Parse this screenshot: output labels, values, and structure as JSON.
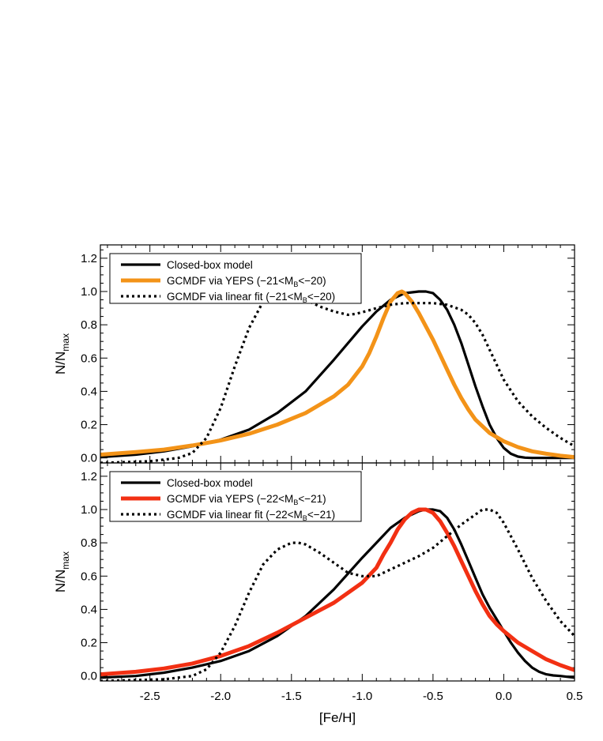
{
  "chart_data": [
    {
      "type": "line",
      "panel": "top",
      "xlabel": "",
      "ylabel_main": "N/N",
      "ylabel_sub": "max",
      "xlim": [
        -2.85,
        0.5
      ],
      "ylim": [
        -0.03,
        1.28
      ],
      "yticks": [
        "0.0",
        "0.2",
        "0.4",
        "0.6",
        "0.8",
        "1.0",
        "1.2"
      ],
      "legend_position": "top-left",
      "series": [
        {
          "name": "Closed-box model",
          "color": "#000000",
          "style": "solid",
          "x": [
            -2.85,
            -2.6,
            -2.4,
            -2.2,
            -2.0,
            -1.8,
            -1.6,
            -1.4,
            -1.2,
            -1.0,
            -0.9,
            -0.8,
            -0.7,
            -0.6,
            -0.55,
            -0.5,
            -0.45,
            -0.4,
            -0.35,
            -0.3,
            -0.25,
            -0.2,
            -0.15,
            -0.1,
            -0.05,
            0.0,
            0.05,
            0.1,
            0.15,
            0.2,
            0.3,
            0.4,
            0.5
          ],
          "y": [
            0.005,
            0.02,
            0.04,
            0.07,
            0.11,
            0.17,
            0.27,
            0.4,
            0.59,
            0.79,
            0.88,
            0.95,
            0.99,
            1.0,
            1.0,
            0.99,
            0.95,
            0.89,
            0.8,
            0.69,
            0.56,
            0.43,
            0.31,
            0.2,
            0.12,
            0.06,
            0.025,
            0.008,
            0.002,
            0.0,
            0.0,
            0.0,
            0.0
          ]
        },
        {
          "name": "GCMDF via YEPS (−21<M",
          "legend_sub": "B",
          "legend_tail": "<−20)",
          "color": "#f39318",
          "style": "solid",
          "x": [
            -2.85,
            -2.6,
            -2.4,
            -2.2,
            -2.0,
            -1.8,
            -1.6,
            -1.4,
            -1.2,
            -1.1,
            -1.0,
            -0.95,
            -0.9,
            -0.85,
            -0.8,
            -0.75,
            -0.72,
            -0.7,
            -0.65,
            -0.6,
            -0.55,
            -0.5,
            -0.45,
            -0.4,
            -0.35,
            -0.3,
            -0.25,
            -0.2,
            -0.1,
            0.0,
            0.1,
            0.2,
            0.3,
            0.4,
            0.5
          ],
          "y": [
            0.02,
            0.035,
            0.05,
            0.075,
            0.105,
            0.145,
            0.2,
            0.27,
            0.37,
            0.44,
            0.55,
            0.63,
            0.73,
            0.84,
            0.94,
            0.99,
            1.0,
            0.99,
            0.94,
            0.87,
            0.79,
            0.71,
            0.62,
            0.53,
            0.44,
            0.36,
            0.29,
            0.23,
            0.15,
            0.1,
            0.065,
            0.04,
            0.025,
            0.013,
            0.005
          ]
        },
        {
          "name": "GCMDF via linear fit (−21<M",
          "legend_sub": "B",
          "legend_tail": "<−20)",
          "color": "#000000",
          "style": "dotted",
          "x": [
            -2.85,
            -2.5,
            -2.3,
            -2.2,
            -2.1,
            -2.0,
            -1.9,
            -1.8,
            -1.7,
            -1.6,
            -1.55,
            -1.5,
            -1.45,
            -1.4,
            -1.3,
            -1.2,
            -1.1,
            -1.05,
            -1.0,
            -0.9,
            -0.8,
            -0.7,
            -0.6,
            -0.5,
            -0.4,
            -0.3,
            -0.25,
            -0.2,
            -0.15,
            -0.1,
            -0.05,
            0.0,
            0.1,
            0.2,
            0.3,
            0.4,
            0.5
          ],
          "y": [
            -0.03,
            -0.02,
            0.0,
            0.03,
            0.12,
            0.3,
            0.55,
            0.78,
            0.94,
            1.0,
            1.01,
            1.0,
            0.98,
            0.95,
            0.91,
            0.88,
            0.86,
            0.865,
            0.875,
            0.9,
            0.92,
            0.93,
            0.93,
            0.93,
            0.92,
            0.89,
            0.86,
            0.81,
            0.74,
            0.65,
            0.56,
            0.47,
            0.34,
            0.25,
            0.18,
            0.12,
            0.07
          ]
        }
      ]
    },
    {
      "type": "line",
      "panel": "bottom",
      "xlabel": "[Fe/H]",
      "ylabel_main": "N/N",
      "ylabel_sub": "max",
      "xlim": [
        -2.85,
        0.5
      ],
      "ylim": [
        -0.03,
        1.28
      ],
      "xticks": [
        "-2.5",
        "-2.0",
        "-1.5",
        "-1.0",
        "-0.5",
        "0.0",
        "0.5"
      ],
      "yticks": [
        "0.0",
        "0.2",
        "0.4",
        "0.6",
        "0.8",
        "1.0",
        "1.2"
      ],
      "legend_position": "top-left",
      "series": [
        {
          "name": "Closed-box model",
          "color": "#000000",
          "style": "solid",
          "x": [
            -2.85,
            -2.6,
            -2.4,
            -2.2,
            -2.0,
            -1.8,
            -1.6,
            -1.4,
            -1.2,
            -1.0,
            -0.9,
            -0.8,
            -0.7,
            -0.6,
            -0.55,
            -0.5,
            -0.45,
            -0.4,
            -0.35,
            -0.3,
            -0.25,
            -0.2,
            -0.15,
            -0.1,
            -0.05,
            0.0,
            0.05,
            0.1,
            0.15,
            0.2,
            0.25,
            0.3,
            0.35,
            0.4,
            0.5
          ],
          "y": [
            -0.01,
            0.0,
            0.02,
            0.05,
            0.09,
            0.15,
            0.24,
            0.36,
            0.52,
            0.71,
            0.8,
            0.89,
            0.95,
            0.99,
            1.0,
            1.0,
            0.99,
            0.95,
            0.88,
            0.79,
            0.69,
            0.59,
            0.49,
            0.41,
            0.34,
            0.27,
            0.2,
            0.14,
            0.09,
            0.05,
            0.025,
            0.01,
            0.003,
            0.0,
            -0.01
          ]
        },
        {
          "name": "GCMDF via YEPS (−22<M",
          "legend_sub": "B",
          "legend_tail": "<−21)",
          "color": "#f23013",
          "style": "solid",
          "x": [
            -2.85,
            -2.6,
            -2.4,
            -2.2,
            -2.0,
            -1.8,
            -1.6,
            -1.4,
            -1.2,
            -1.0,
            -0.9,
            -0.85,
            -0.8,
            -0.75,
            -0.7,
            -0.65,
            -0.6,
            -0.55,
            -0.5,
            -0.45,
            -0.4,
            -0.35,
            -0.3,
            -0.25,
            -0.2,
            -0.15,
            -0.1,
            -0.05,
            0.0,
            0.1,
            0.2,
            0.3,
            0.4,
            0.5
          ],
          "y": [
            0.01,
            0.025,
            0.045,
            0.075,
            0.12,
            0.18,
            0.26,
            0.35,
            0.44,
            0.56,
            0.65,
            0.73,
            0.8,
            0.88,
            0.94,
            0.98,
            1.0,
            1.0,
            0.98,
            0.93,
            0.86,
            0.78,
            0.69,
            0.6,
            0.51,
            0.43,
            0.36,
            0.31,
            0.27,
            0.2,
            0.15,
            0.1,
            0.065,
            0.035
          ]
        },
        {
          "name": "GCMDF via linear fit (−22<M",
          "legend_sub": "B",
          "legend_tail": "<−21)",
          "color": "#000000",
          "style": "dotted",
          "x": [
            -2.85,
            -2.4,
            -2.2,
            -2.1,
            -2.0,
            -1.9,
            -1.8,
            -1.7,
            -1.6,
            -1.5,
            -1.45,
            -1.4,
            -1.3,
            -1.2,
            -1.1,
            -1.0,
            -0.9,
            -0.85,
            -0.8,
            -0.7,
            -0.6,
            -0.5,
            -0.4,
            -0.3,
            -0.2,
            -0.15,
            -0.1,
            -0.05,
            0.0,
            0.1,
            0.2,
            0.3,
            0.4,
            0.5
          ],
          "y": [
            -0.03,
            -0.02,
            0.0,
            0.04,
            0.14,
            0.3,
            0.5,
            0.67,
            0.76,
            0.8,
            0.8,
            0.79,
            0.74,
            0.68,
            0.62,
            0.6,
            0.6,
            0.62,
            0.64,
            0.68,
            0.72,
            0.77,
            0.84,
            0.91,
            0.97,
            1.0,
            1.0,
            0.98,
            0.92,
            0.76,
            0.59,
            0.45,
            0.33,
            0.24
          ]
        }
      ]
    }
  ]
}
